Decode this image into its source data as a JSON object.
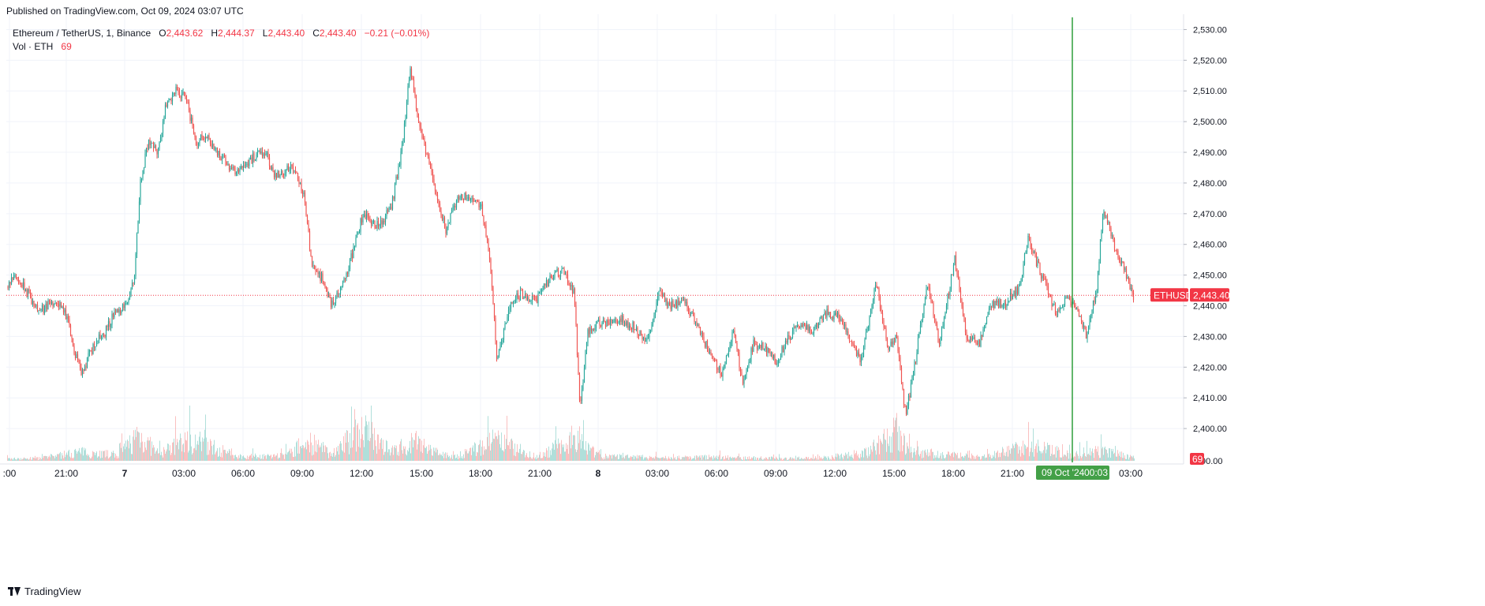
{
  "header": {
    "published": "Published on TradingView.com, Oct 09, 2024 03:07 UTC"
  },
  "legend": {
    "symbol": "Ethereum / TetherUS, 1, Binance",
    "o_label": "O",
    "o_value": "2,443.62",
    "h_label": "H",
    "h_value": "2,444.37",
    "l_label": "L",
    "l_value": "2,443.40",
    "c_label": "C",
    "c_value": "2,443.40",
    "change": "−0.21 (−0.01%)",
    "vol_label": "Vol · ETH",
    "vol_value": "69"
  },
  "price_tag": {
    "symbol": "ETHUSDT",
    "value": "2,443.40"
  },
  "volume_tag": "69",
  "crosshair_label": {
    "date": "09 Oct '24",
    "time": "00:03"
  },
  "brand": "TradingView",
  "colors": {
    "up": "#26a69a",
    "down": "#ef5350",
    "tag": "#f23645",
    "crosshair": "#2e9e3b",
    "grid": "#f0f3fa",
    "axis_text": "#131722"
  },
  "chart_data": {
    "type": "candlestick",
    "title": "Ethereum / TetherUS, 1, Binance",
    "ylim": [
      2390,
      2535
    ],
    "y_ticks": [
      2400,
      2410,
      2420,
      2430,
      2440,
      2450,
      2460,
      2470,
      2480,
      2490,
      2500,
      2510,
      2520,
      2530
    ],
    "y_tick_labels": [
      "2,400.00",
      "2,410.00",
      "2,420.00",
      "2,430.00",
      "2,440.00",
      "2,450.00",
      "2,460.00",
      "2,470.00",
      "2,480.00",
      "2,490.00",
      "2,500.00",
      "2,510.00",
      "2,520.00",
      "2,530.00"
    ],
    "y_partial_label": "90.00",
    "x_ticks": [
      ":00",
      "21:00",
      "7",
      "03:00",
      "06:00",
      "09:00",
      "12:00",
      "15:00",
      "18:00",
      "21:00",
      "8",
      "03:00",
      "06:00",
      "09:00",
      "12:00",
      "15:00",
      "18:00",
      "21:00",
      "03:00"
    ],
    "last_price": 2443.4,
    "crosshair_time": "09 Oct '24 00:03",
    "price_path": [
      [
        0,
        2441
      ],
      [
        18,
        2450
      ],
      [
        30,
        2446
      ],
      [
        50,
        2438
      ],
      [
        70,
        2442
      ],
      [
        85,
        2436
      ],
      [
        95,
        2424
      ],
      [
        104,
        2418
      ],
      [
        120,
        2428
      ],
      [
        135,
        2432
      ],
      [
        145,
        2438
      ],
      [
        160,
        2440
      ],
      [
        170,
        2448
      ],
      [
        178,
        2480
      ],
      [
        188,
        2494
      ],
      [
        200,
        2490
      ],
      [
        210,
        2505
      ],
      [
        222,
        2510
      ],
      [
        236,
        2508
      ],
      [
        248,
        2493
      ],
      [
        262,
        2496
      ],
      [
        280,
        2488
      ],
      [
        300,
        2484
      ],
      [
        320,
        2488
      ],
      [
        336,
        2490
      ],
      [
        350,
        2482
      ],
      [
        370,
        2486
      ],
      [
        385,
        2476
      ],
      [
        395,
        2454
      ],
      [
        410,
        2448
      ],
      [
        420,
        2440
      ],
      [
        436,
        2448
      ],
      [
        450,
        2460
      ],
      [
        460,
        2470
      ],
      [
        480,
        2466
      ],
      [
        496,
        2472
      ],
      [
        510,
        2492
      ],
      [
        520,
        2518
      ],
      [
        530,
        2500
      ],
      [
        540,
        2490
      ],
      [
        552,
        2478
      ],
      [
        565,
        2464
      ],
      [
        578,
        2474
      ],
      [
        595,
        2476
      ],
      [
        610,
        2472
      ],
      [
        620,
        2458
      ],
      [
        630,
        2422
      ],
      [
        645,
        2440
      ],
      [
        660,
        2444
      ],
      [
        680,
        2442
      ],
      [
        700,
        2450
      ],
      [
        715,
        2451
      ],
      [
        728,
        2444
      ],
      [
        735,
        2406
      ],
      [
        745,
        2432
      ],
      [
        760,
        2434
      ],
      [
        780,
        2436
      ],
      [
        800,
        2434
      ],
      [
        820,
        2428
      ],
      [
        835,
        2444
      ],
      [
        850,
        2440
      ],
      [
        865,
        2442
      ],
      [
        880,
        2436
      ],
      [
        900,
        2424
      ],
      [
        915,
        2418
      ],
      [
        930,
        2432
      ],
      [
        942,
        2414
      ],
      [
        955,
        2428
      ],
      [
        970,
        2426
      ],
      [
        985,
        2422
      ],
      [
        1000,
        2430
      ],
      [
        1015,
        2434
      ],
      [
        1030,
        2432
      ],
      [
        1048,
        2438
      ],
      [
        1065,
        2436
      ],
      [
        1080,
        2428
      ],
      [
        1092,
        2422
      ],
      [
        1110,
        2448
      ],
      [
        1125,
        2426
      ],
      [
        1136,
        2430
      ],
      [
        1148,
        2404
      ],
      [
        1160,
        2422
      ],
      [
        1175,
        2448
      ],
      [
        1190,
        2428
      ],
      [
        1210,
        2455
      ],
      [
        1225,
        2430
      ],
      [
        1242,
        2428
      ],
      [
        1256,
        2440
      ],
      [
        1275,
        2441
      ],
      [
        1292,
        2446
      ],
      [
        1303,
        2462
      ],
      [
        1320,
        2450
      ],
      [
        1338,
        2438
      ],
      [
        1352,
        2442
      ],
      [
        1362,
        2440
      ],
      [
        1377,
        2430
      ],
      [
        1390,
        2446
      ],
      [
        1398,
        2472
      ],
      [
        1412,
        2460
      ],
      [
        1425,
        2452
      ],
      [
        1437,
        2443
      ]
    ],
    "volume_path": [
      [
        0,
        4
      ],
      [
        50,
        5
      ],
      [
        100,
        18
      ],
      [
        150,
        12
      ],
      [
        175,
        55
      ],
      [
        200,
        14
      ],
      [
        240,
        45
      ],
      [
        300,
        9
      ],
      [
        360,
        10
      ],
      [
        390,
        40
      ],
      [
        420,
        14
      ],
      [
        458,
        65
      ],
      [
        500,
        20
      ],
      [
        520,
        40
      ],
      [
        560,
        12
      ],
      [
        580,
        10
      ],
      [
        628,
        42
      ],
      [
        680,
        8
      ],
      [
        734,
        52
      ],
      [
        760,
        9
      ],
      [
        800,
        8
      ],
      [
        850,
        6
      ],
      [
        900,
        8
      ],
      [
        950,
        6
      ],
      [
        1000,
        5
      ],
      [
        1050,
        7
      ],
      [
        1100,
        18
      ],
      [
        1136,
        60
      ],
      [
        1150,
        20
      ],
      [
        1200,
        12
      ],
      [
        1250,
        8
      ],
      [
        1303,
        30
      ],
      [
        1360,
        12
      ],
      [
        1398,
        20
      ],
      [
        1437,
        6
      ]
    ],
    "volume_ylim": [
      0,
      120
    ]
  }
}
